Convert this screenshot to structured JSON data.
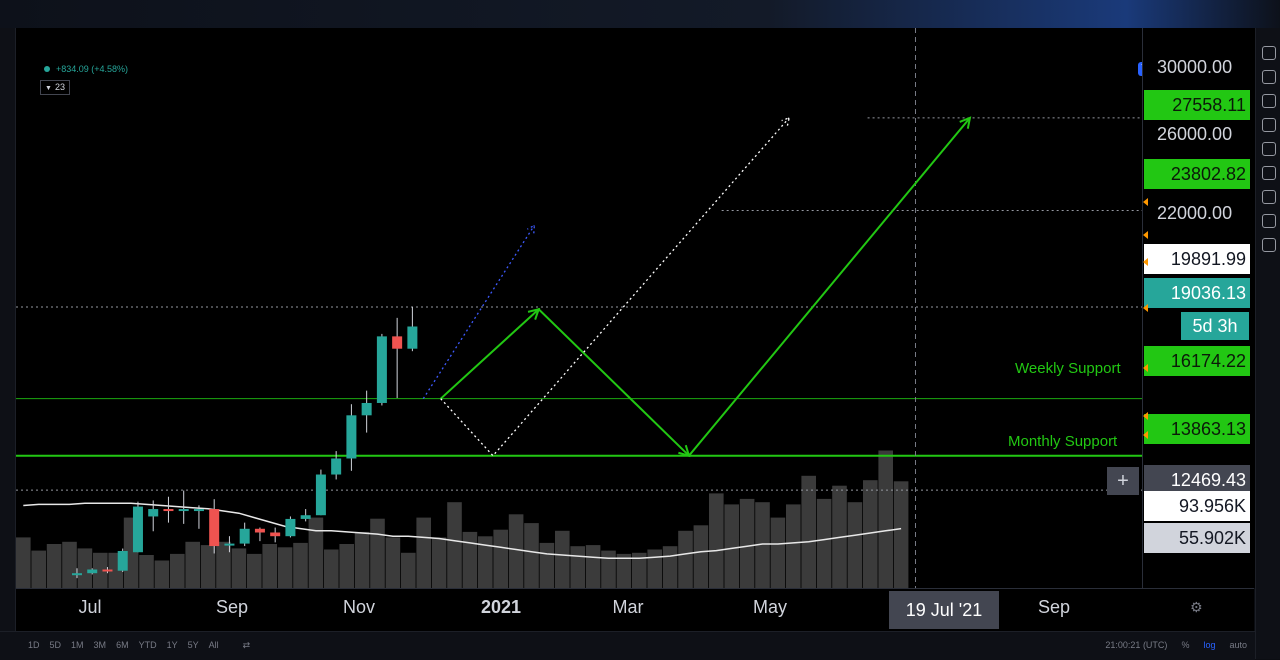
{
  "header": {
    "change_text": "+834.09 (+4.58%)",
    "ma_length": "23"
  },
  "annotations": {
    "weekly_support": "Weekly Support",
    "monthly_support": "Monthly Support"
  },
  "price_axis": {
    "ticks": [
      "30000.00",
      "26000.00",
      "22000.00"
    ],
    "labels": {
      "target_high": "27558.11",
      "target_mid": "23802.82",
      "high_line": "19891.99",
      "last_price": "19036.13",
      "countdown": "5d 3h",
      "weekly_support": "16174.22",
      "monthly_support": "13863.13",
      "crosshair": "12469.43",
      "volume": "93.956K",
      "volume_ma": "55.902K"
    }
  },
  "time_axis": {
    "ticks": [
      "Jul",
      "Sep",
      "Nov",
      "2021",
      "Mar",
      "May",
      "Sep"
    ],
    "crosshair_label": "19 Jul '21"
  },
  "bottom_bar": {
    "ranges": [
      "1D",
      "5D",
      "1M",
      "3M",
      "6M",
      "YTD",
      "1Y",
      "5Y",
      "All"
    ],
    "clock": "21:00:21 (UTC)",
    "options": [
      "%",
      "log",
      "auto"
    ]
  },
  "colors": {
    "up": "#26a69a",
    "down": "#ef5350",
    "annotation": "#22c713",
    "projection_white": "#ffffff",
    "projection_blue": "#3d5afe"
  },
  "chart_data": {
    "type": "candlestick",
    "interval": "weekly",
    "ylim": [
      8500,
      31200
    ],
    "scale": "linear",
    "x_start": "2020-06-01",
    "x_end": "2021-10-31",
    "candles": [
      {
        "t": "2020-06-29",
        "o": 9100,
        "h": 9300,
        "l": 8900,
        "c": 9100
      },
      {
        "t": "2020-07-06",
        "o": 9100,
        "h": 9300,
        "l": 9050,
        "c": 9250
      },
      {
        "t": "2020-07-13",
        "o": 9250,
        "h": 9350,
        "l": 9100,
        "c": 9200
      },
      {
        "t": "2020-07-20",
        "o": 9200,
        "h": 10100,
        "l": 9150,
        "c": 10000
      },
      {
        "t": "2020-07-27",
        "o": 9950,
        "h": 12000,
        "l": 9950,
        "c": 11800
      },
      {
        "t": "2020-08-03",
        "o": 11400,
        "h": 12050,
        "l": 10800,
        "c": 11700
      },
      {
        "t": "2020-08-10",
        "o": 11700,
        "h": 12200,
        "l": 11150,
        "c": 11650
      },
      {
        "t": "2020-08-17",
        "o": 11700,
        "h": 12450,
        "l": 11100,
        "c": 11700
      },
      {
        "t": "2020-08-24",
        "o": 11700,
        "h": 11850,
        "l": 10900,
        "c": 11700
      },
      {
        "t": "2020-08-31",
        "o": 11700,
        "h": 12100,
        "l": 9900,
        "c": 10200
      },
      {
        "t": "2020-09-07",
        "o": 10250,
        "h": 10600,
        "l": 9950,
        "c": 10300
      },
      {
        "t": "2020-09-14",
        "o": 10300,
        "h": 11150,
        "l": 10200,
        "c": 10900
      },
      {
        "t": "2020-09-21",
        "o": 10900,
        "h": 10950,
        "l": 10400,
        "c": 10750
      },
      {
        "t": "2020-09-28",
        "o": 10750,
        "h": 10950,
        "l": 10350,
        "c": 10600
      },
      {
        "t": "2020-10-05",
        "o": 10600,
        "h": 11400,
        "l": 10550,
        "c": 11300
      },
      {
        "t": "2020-10-12",
        "o": 11300,
        "h": 11700,
        "l": 11200,
        "c": 11450
      },
      {
        "t": "2020-10-19",
        "o": 11450,
        "h": 13300,
        "l": 11450,
        "c": 13100
      },
      {
        "t": "2020-10-26",
        "o": 13100,
        "h": 14050,
        "l": 12900,
        "c": 13750
      },
      {
        "t": "2020-11-02",
        "o": 13750,
        "h": 15950,
        "l": 13250,
        "c": 15500
      },
      {
        "t": "2020-11-09",
        "o": 15500,
        "h": 16500,
        "l": 14800,
        "c": 16000
      },
      {
        "t": "2020-11-16",
        "o": 16000,
        "h": 18800,
        "l": 15900,
        "c": 18700
      },
      {
        "t": "2020-11-23",
        "o": 18700,
        "h": 19450,
        "l": 16200,
        "c": 18200
      },
      {
        "t": "2020-11-30",
        "o": 18200,
        "h": 19900,
        "l": 18100,
        "c": 19100
      }
    ],
    "volume_bars": [
      46,
      34,
      40,
      42,
      36,
      32,
      32,
      64,
      30,
      25,
      31,
      42,
      39,
      42,
      36,
      31,
      40,
      37,
      41,
      64,
      35,
      40,
      51,
      63,
      46,
      32,
      64,
      46,
      78,
      51,
      47,
      53,
      67,
      59,
      41,
      52,
      38,
      39,
      34,
      31,
      32,
      35,
      38,
      52,
      57,
      86,
      76,
      81,
      78,
      64,
      76,
      102,
      81,
      93,
      78,
      98,
      125,
      97
    ],
    "volume_ma": [
      75,
      76,
      76,
      76,
      77,
      77,
      77,
      77,
      76,
      75,
      74,
      73,
      72,
      70,
      68,
      64,
      60,
      56,
      54,
      52,
      52,
      51,
      50,
      49,
      47,
      47,
      46,
      45,
      43,
      41,
      39,
      37,
      35,
      33,
      31,
      30,
      29,
      28,
      27,
      27,
      27,
      28,
      29,
      31,
      33,
      34,
      36,
      38,
      40,
      40,
      41,
      42,
      44,
      46,
      48,
      50,
      52,
      54
    ],
    "levels": [
      {
        "name": "weekly_support",
        "y": 16174.22
      },
      {
        "name": "monthly_support",
        "y": 13863.13
      },
      {
        "name": "high",
        "y": 19891.99
      },
      {
        "name": "last_price",
        "y": 19036.13
      },
      {
        "name": "crosshair",
        "y": 12469.43
      }
    ],
    "projections": [
      {
        "name": "green-path",
        "points": [
          [
            "2020-12-13",
            16174
          ],
          [
            "2021-01-27",
            19800
          ],
          [
            "2021-04-06",
            13863
          ],
          [
            "2021-08-13",
            27558
          ]
        ]
      },
      {
        "name": "white-dotted-path",
        "points": [
          [
            "2020-12-13",
            16174
          ],
          [
            "2021-01-06",
            13863
          ],
          [
            "2021-05-22",
            27558
          ]
        ]
      },
      {
        "name": "blue-dotted-path",
        "points": [
          [
            "2020-12-05",
            16174
          ],
          [
            "2021-01-25",
            23200
          ]
        ]
      }
    ],
    "horizontal_dotted": [
      {
        "y": 27558.11,
        "x_from": "2021-06-27"
      },
      {
        "y": 23802.82,
        "x_from": "2021-04-21"
      },
      {
        "y": 19891.99,
        "x_from": "2020-06-01"
      },
      {
        "y": 12469.43,
        "x_from": "2020-06-01"
      }
    ],
    "crosshair_date": "2021-07-19"
  }
}
